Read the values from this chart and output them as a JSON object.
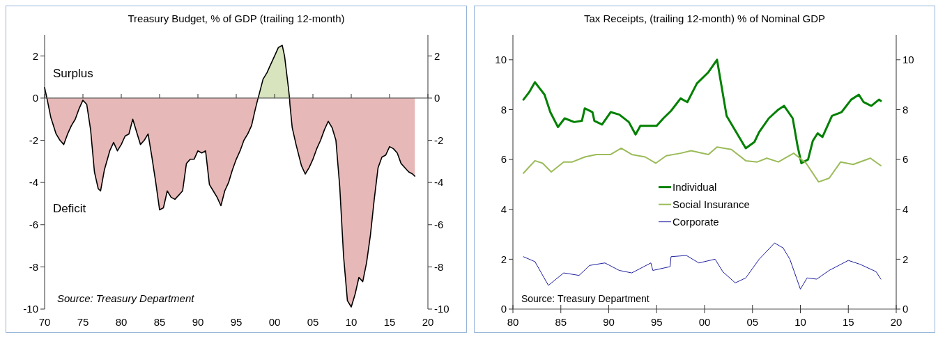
{
  "chart_data": [
    {
      "type": "area",
      "title": "Treasury Budget, % of GDP (trailing 12-month)",
      "annotations": [
        "Surplus",
        "Deficit",
        "Source: Treasury Department"
      ],
      "xlim": [
        1970,
        2020
      ],
      "xticks": [
        {
          "value": 1970,
          "label": "70"
        },
        {
          "value": 1975,
          "label": "75"
        },
        {
          "value": 1980,
          "label": "80"
        },
        {
          "value": 1985,
          "label": "85"
        },
        {
          "value": 1990,
          "label": "90"
        },
        {
          "value": 1995,
          "label": "95"
        },
        {
          "value": 2000,
          "label": "00"
        },
        {
          "value": 2005,
          "label": "05"
        },
        {
          "value": 2010,
          "label": "10"
        },
        {
          "value": 2015,
          "label": "15"
        },
        {
          "value": 2020,
          "label": "20"
        }
      ],
      "ylim": [
        -10,
        3
      ],
      "yticks": [
        -10,
        -8,
        -6,
        -4,
        -2,
        0,
        2
      ],
      "y2lim": [
        -10,
        3
      ],
      "y2ticks": [
        -10,
        -8,
        -6,
        -4,
        -2,
        0,
        2
      ],
      "legend": false,
      "series": [
        {
          "color": "#d7e4bd",
          "x": [
            1970,
            1970.3,
            1984,
            1997.85,
            1998,
            1998.5,
            1999,
            1999.5,
            2000,
            2000.5,
            2001,
            2001.3,
            2001.8,
            2001.95
          ],
          "values": [
            0.5,
            0,
            null,
            0,
            0.2,
            0.9,
            1.2,
            1.6,
            2,
            2.4,
            2.5,
            2,
            0.5,
            0
          ]
        },
        {
          "color": "#e6b8b7",
          "x": [
            1970.3,
            1970.8,
            1971.5,
            1972,
            1972.5,
            1973,
            1973.5,
            1974,
            1974.5,
            1975,
            1975.5,
            1976,
            1976.5,
            1977,
            1977.3,
            1977.8,
            1978.5,
            1979,
            1979.5,
            1980,
            1980.5,
            1981,
            1981.5,
            1982,
            1982.5,
            1983,
            1983.5,
            1984,
            1984.5,
            1985,
            1985.5,
            1986,
            1986.5,
            1987,
            1987.5,
            1988,
            1988.5,
            1989,
            1989.5,
            1990,
            1990.5,
            1991,
            1991.5,
            1992,
            1992.5,
            1993,
            1993.5,
            1994,
            1994.5,
            1995,
            1995.5,
            1996,
            1996.5,
            1997,
            1997.5,
            1997.85,
            2000,
            2001.95,
            2002,
            2002.3,
            2002.8,
            2003.5,
            2004,
            2004.5,
            2005,
            2005.5,
            2006,
            2006.5,
            2007,
            2007.5,
            2008,
            2008.5,
            2009,
            2009.5,
            2010,
            2010.5,
            2011,
            2011.5,
            2012,
            2012.5,
            2013,
            2013.5,
            2014,
            2014.5,
            2015,
            2015.5,
            2016,
            2016.5,
            2017,
            2017.5,
            2018,
            2018.3
          ],
          "values": [
            0,
            -0.9,
            -1.7,
            -2,
            -2.2,
            -1.7,
            -1.3,
            -1,
            -0.5,
            -0.1,
            -0.3,
            -1.5,
            -3.5,
            -4.3,
            -4.4,
            -3.4,
            -2.5,
            -2.1,
            -2.5,
            -2.2,
            -1.8,
            -1.7,
            -1,
            -1.6,
            -2.2,
            -2,
            -1.7,
            -2.8,
            -4,
            -5.3,
            -5.2,
            -4.4,
            -4.7,
            -4.8,
            -4.6,
            -4.4,
            -3.1,
            -2.9,
            -2.9,
            -2.5,
            -2.6,
            -2.5,
            -4.1,
            -4.4,
            -4.7,
            -5.1,
            -4.4,
            -4,
            -3.4,
            -2.9,
            -2.5,
            -2,
            -1.7,
            -1.3,
            -0.5,
            0,
            null,
            0,
            -0.3,
            -1.4,
            -2.2,
            -3.2,
            -3.6,
            -3.3,
            -2.9,
            -2.4,
            -2,
            -1.5,
            -1.1,
            -1.4,
            -2,
            -4.2,
            -7.5,
            -9.6,
            -9.9,
            -9.3,
            -8.5,
            -8.7,
            -7.8,
            -6.5,
            -4.8,
            -3.3,
            -2.8,
            -2.7,
            -2.3,
            -2.4,
            -2.6,
            -3.1,
            -3.3,
            -3.5,
            -3.6,
            -3.7
          ]
        }
      ]
    },
    {
      "type": "line",
      "title": "Tax Receipts, (trailing 12-month) % of Nominal GDP",
      "annotations": [
        "Source: Treasury Department"
      ],
      "xlim": [
        1980,
        2020
      ],
      "xticks": [
        {
          "value": 1980,
          "label": "80"
        },
        {
          "value": 1985,
          "label": "85"
        },
        {
          "value": 1990,
          "label": "90"
        },
        {
          "value": 1995,
          "label": "95"
        },
        {
          "value": 2000,
          "label": "00"
        },
        {
          "value": 2005,
          "label": "05"
        },
        {
          "value": 2010,
          "label": "10"
        },
        {
          "value": 2015,
          "label": "15"
        },
        {
          "value": 2020,
          "label": "20"
        }
      ],
      "ylim": [
        0,
        11
      ],
      "yticks": [
        0,
        2,
        4,
        6,
        8,
        10
      ],
      "y2lim": [
        0,
        11
      ],
      "y2ticks": [
        0,
        2,
        4,
        6,
        8,
        10
      ],
      "grid": false,
      "legend": "center",
      "marker": "none",
      "series": [
        {
          "name": "Individual",
          "color": "#008000",
          "x": [
            1981.1,
            1981.7,
            1982.3,
            1983.3,
            1983.9,
            1984.7,
            1985.4,
            1986.4,
            1987.2,
            1987.5,
            1988.3,
            1988.5,
            1989.3,
            1990.2,
            1991.1,
            1992.1,
            1992.8,
            1993.3,
            1995,
            1995.7,
            1996.5,
            1997.5,
            1998.2,
            1999.2,
            2000.4,
            2001.3,
            2002.3,
            2003.3,
            2004.3,
            2005.2,
            2005.7,
            2006.7,
            2007.7,
            2008.3,
            2009.2,
            2009.7,
            2010.1,
            2010.8,
            2011.3,
            2011.8,
            2012.3,
            2013.3,
            2014.3,
            2015.3,
            2016.1,
            2016.6,
            2017.4,
            2018.2,
            2018.4
          ],
          "values": [
            8.4,
            8.7,
            9.1,
            8.6,
            7.9,
            7.3,
            7.65,
            7.5,
            7.55,
            8.05,
            7.9,
            7.55,
            7.4,
            7.9,
            7.8,
            7.5,
            7,
            7.35,
            7.35,
            7.65,
            7.95,
            8.45,
            8.3,
            9.05,
            9.5,
            10,
            7.75,
            7.1,
            6.45,
            6.7,
            7.1,
            7.65,
            8,
            8.15,
            7.65,
            6.55,
            5.85,
            6,
            6.75,
            7.05,
            6.9,
            7.75,
            7.9,
            8.4,
            8.6,
            8.3,
            8.15,
            8.4,
            8.35
          ]
        },
        {
          "name": "Social Insurance",
          "color": "#9bbb59",
          "x": [
            1981.1,
            1982.3,
            1983.1,
            1984,
            1985.3,
            1986.2,
            1987.5,
            1988.7,
            1990.2,
            1991.3,
            1992.4,
            1993.8,
            1994.9,
            1996,
            1997.5,
            1998.6,
            2000.4,
            2001.3,
            2002.8,
            2004.3,
            2005.5,
            2006.5,
            2007.7,
            2009.3,
            2010.6,
            2011.9,
            2013,
            2014.2,
            2015.5,
            2017.3,
            2018.4
          ],
          "values": [
            5.45,
            5.95,
            5.85,
            5.5,
            5.9,
            5.9,
            6.1,
            6.2,
            6.2,
            6.45,
            6.2,
            6.1,
            5.85,
            6.15,
            6.25,
            6.35,
            6.2,
            6.5,
            6.4,
            5.95,
            5.9,
            6.05,
            5.9,
            6.25,
            5.85,
            5.1,
            5.25,
            5.9,
            5.8,
            6.05,
            5.75
          ]
        },
        {
          "name": "Corporate",
          "color": "#1f1fa0",
          "x": [
            1981.1,
            1982.3,
            1983.7,
            1985.3,
            1986.9,
            1988,
            1989.6,
            1991.1,
            1992.4,
            1994.4,
            1994.6,
            1996.4,
            1996.5,
            1998.1,
            1999.4,
            2001.1,
            2001.9,
            2003.2,
            2004.3,
            2005.7,
            2007.3,
            2008.2,
            2008.9,
            2010,
            2010.7,
            2011.7,
            2013,
            2015,
            2016.2,
            2017.9,
            2018.4
          ],
          "values": [
            2.1,
            1.9,
            0.95,
            1.45,
            1.35,
            1.75,
            1.85,
            1.55,
            1.45,
            1.85,
            1.55,
            1.7,
            2.1,
            2.15,
            1.85,
            2,
            1.5,
            1.05,
            1.25,
            2,
            2.65,
            2.45,
            2,
            0.8,
            1.25,
            1.2,
            1.55,
            1.95,
            1.8,
            1.5,
            1.2
          ]
        }
      ]
    }
  ]
}
